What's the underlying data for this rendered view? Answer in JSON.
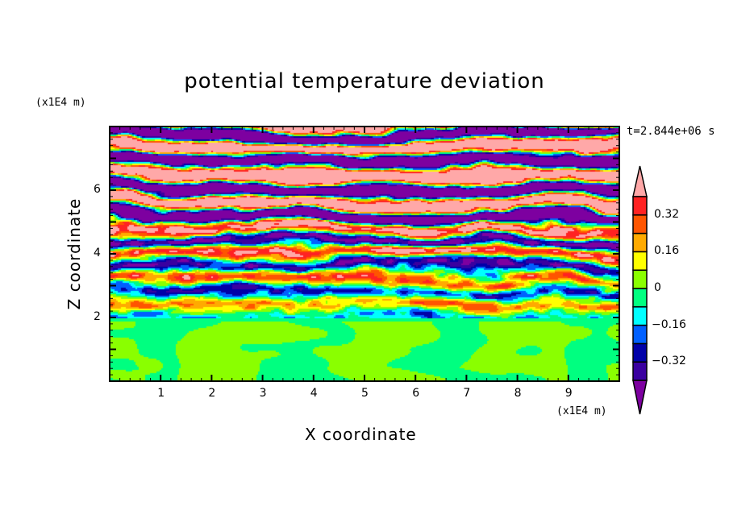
{
  "chart_data": {
    "type": "heatmap",
    "subtype": "filled-contour",
    "title": "potential temperature deviation",
    "xlabel": "X coordinate",
    "ylabel": "Z coordinate",
    "x_scale_label": "(x1E4 m)",
    "z_scale_label": "(x1E4 m)",
    "time_label": "t=2.844e+06 s",
    "xlim": [
      0,
      10
    ],
    "ylim": [
      0,
      8
    ],
    "x_ticks": [
      "1",
      "2",
      "3",
      "4",
      "5",
      "6",
      "7",
      "8",
      "9"
    ],
    "x_tick_values": [
      1,
      2,
      3,
      4,
      5,
      6,
      7,
      8,
      9
    ],
    "z_ticks": [
      "2",
      "4",
      "6"
    ],
    "z_tick_values": [
      2,
      4,
      6
    ],
    "colorbar": {
      "levels": [
        -0.4,
        -0.32,
        -0.24,
        -0.16,
        -0.08,
        0,
        0.08,
        0.16,
        0.24,
        0.32,
        0.4
      ],
      "labels": [
        "0.32",
        "0.16",
        "0",
        "-0.16",
        "-0.32"
      ],
      "label_values": [
        0.32,
        0.16,
        0,
        -0.16,
        -0.32
      ],
      "colors_low_to_high": [
        "#7d00a0",
        "#3a00a0",
        "#0000a8",
        "#0060ff",
        "#00ffff",
        "#00ff80",
        "#8aff00",
        "#ffff00",
        "#ffaa00",
        "#ff5500",
        "#ff2222",
        "#ffa8a8"
      ],
      "extend": "both"
    },
    "description_regions": [
      {
        "z_range": [
          0,
          2
        ],
        "value_range": [
          -0.08,
          0.08
        ]
      },
      {
        "z_range": [
          2,
          5
        ],
        "value_range": [
          -0.4,
          0.4
        ]
      },
      {
        "z_range": [
          5,
          8
        ],
        "value_range": [
          -0.5,
          0.5
        ]
      }
    ]
  }
}
